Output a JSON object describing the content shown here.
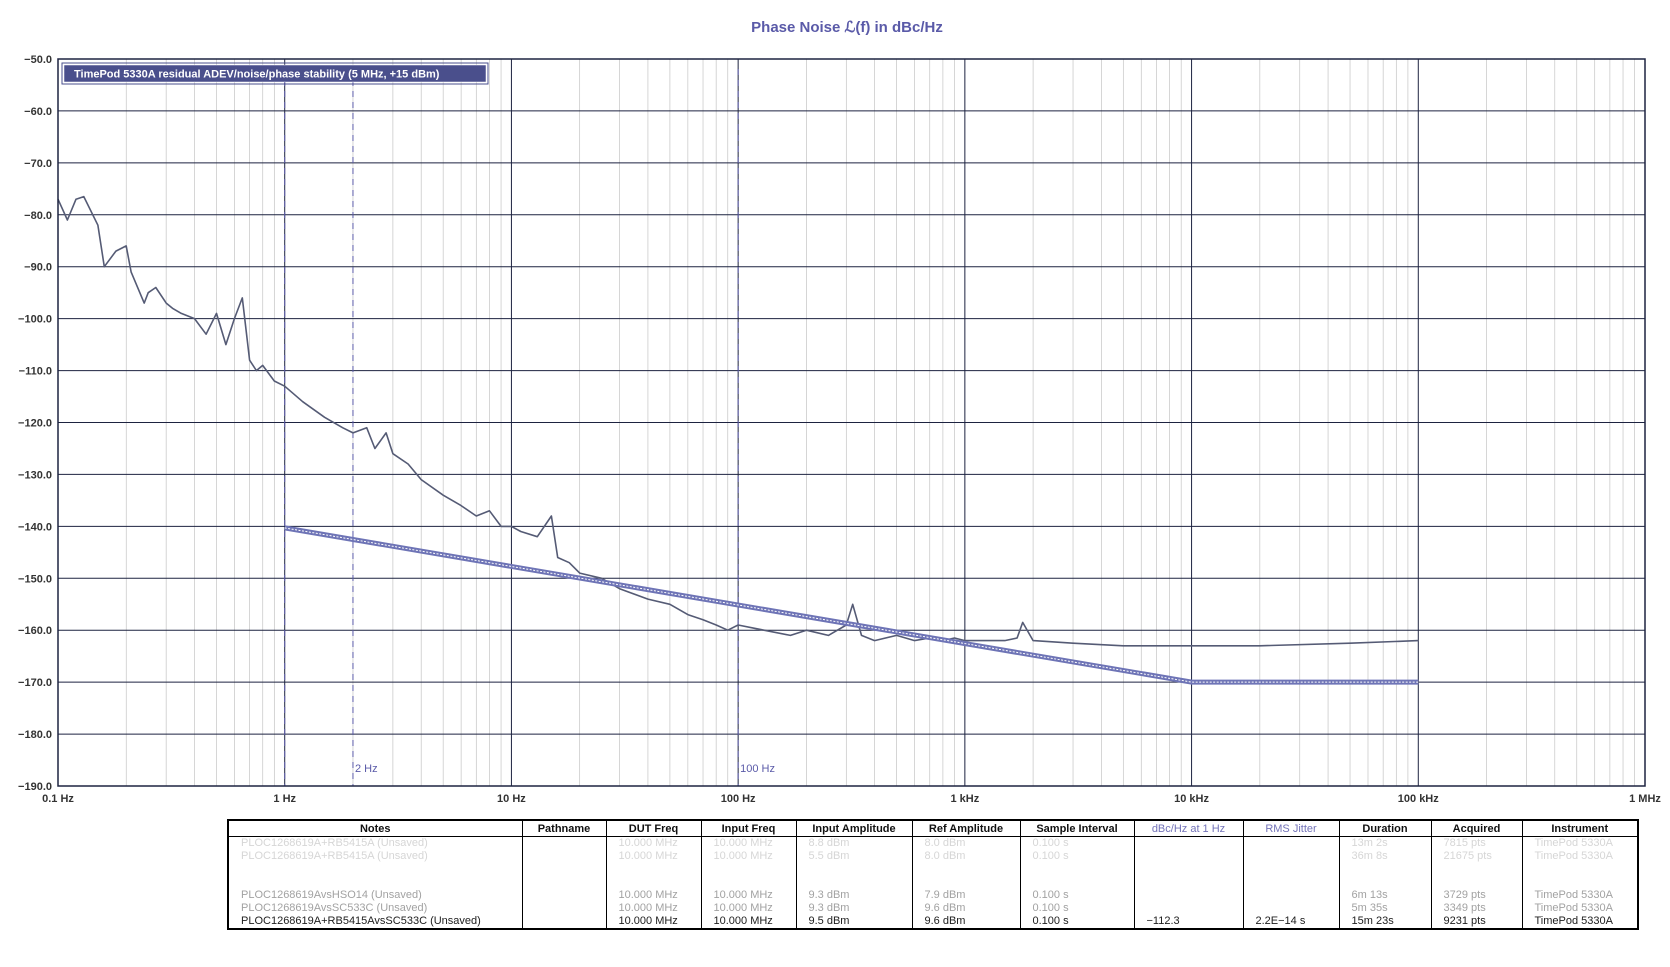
{
  "chart_data": {
    "type": "line",
    "title": "Phase  Noise ℒ(f) in dBc/Hz",
    "xscale": "log",
    "xlim": [
      0.1,
      1000000
    ],
    "ylim": [
      -190,
      -50
    ],
    "grid": true,
    "x_tick_labels": [
      "0.1 Hz",
      "1 Hz",
      "10 Hz",
      "100 Hz",
      "1 kHz",
      "10 kHz",
      "100 kHz",
      "1 MHz"
    ],
    "y_tick_values": [
      -50,
      -60,
      -70,
      -80,
      -90,
      -100,
      -110,
      -120,
      -130,
      -140,
      -150,
      -160,
      -170,
      -180,
      -190
    ],
    "y_tick_labels": [
      "−50.0",
      "−60.0",
      "−70.0",
      "−80.0",
      "−90.0",
      "−100.0",
      "−110.0",
      "−120.0",
      "−130.0",
      "−140.0",
      "−150.0",
      "−160.0",
      "−170.0",
      "−180.0",
      "−190.0"
    ],
    "markers": [
      {
        "x": 1,
        "label": ""
      },
      {
        "x": 2,
        "label": "2 Hz"
      },
      {
        "x": 100,
        "label": "100 Hz"
      }
    ],
    "legend": {
      "text": "TimePod 5330A residual ADEV/noise/phase stability (5 MHz, +15 dBm)",
      "placement": "top-left"
    },
    "colors": {
      "trace": "#555b75",
      "spec": "#6e74b6",
      "marker": "#5a5aa8",
      "grid_major": "#1d2340",
      "grid_minor": "#c4c4c4"
    },
    "series": [
      {
        "x": [
          0.1,
          0.11,
          0.12,
          0.13,
          0.15,
          0.16,
          0.18,
          0.2,
          0.21,
          0.24,
          0.25,
          0.27,
          0.3,
          0.32,
          0.35,
          0.4,
          0.45,
          0.5,
          0.55,
          0.6,
          0.65,
          0.7,
          0.75,
          0.8,
          0.9,
          1.0,
          1.2,
          1.5,
          1.8,
          2.0,
          2.3,
          2.5,
          2.8,
          3.0,
          3.5,
          4.0,
          5.0,
          6.0,
          7.0,
          8.0,
          9.0,
          10,
          11,
          13,
          15,
          16,
          18,
          20,
          25,
          30,
          40,
          50,
          60,
          70,
          80,
          90,
          100,
          130,
          170,
          200,
          250,
          300,
          320,
          350,
          400,
          500,
          600,
          700,
          800,
          900,
          1000,
          1300,
          1500,
          1700,
          1800,
          2000,
          3000,
          5000,
          7000,
          10000,
          20000,
          50000,
          100000
        ],
        "y": [
          -77,
          -81,
          -77,
          -76.5,
          -82,
          -90,
          -87,
          -86,
          -91,
          -97,
          -95,
          -94,
          -97,
          -98,
          -99,
          -100,
          -103,
          -99,
          -105,
          -100,
          -96,
          -108,
          -110,
          -109,
          -112,
          -113,
          -116,
          -119,
          -121,
          -122,
          -121,
          -125,
          -122,
          -126,
          -128,
          -131,
          -134,
          -136,
          -138,
          -137,
          -140,
          -140,
          -141,
          -142,
          -138,
          -146,
          -147,
          -149,
          -150,
          -152,
          -154,
          -155,
          -157,
          -158,
          -159,
          -160,
          -159,
          -160,
          -161,
          -160,
          -161,
          -159,
          -155,
          -161,
          -162,
          -161,
          -162,
          -161.5,
          -162,
          -161.5,
          -162,
          -162,
          -162,
          -161.5,
          -158.5,
          -162,
          -162.5,
          -163,
          -163,
          -163,
          -163,
          -162.5,
          -162
        ]
      },
      {
        "x": [
          1,
          10000,
          100000
        ],
        "y": [
          -140.3,
          -170,
          -170
        ]
      }
    ]
  },
  "table": {
    "columns": [
      "Notes",
      "Pathname",
      "DUT Freq",
      "Input Freq",
      "Input Amplitude",
      "Ref Amplitude",
      "Sample Interval",
      "dBc/Hz at 1 Hz",
      "RMS Jitter",
      "Duration",
      "Acquired",
      "Instrument"
    ],
    "rows": [
      [
        "PLOC1268619A+RB5415A (Unsaved)",
        "",
        "10.000 MHz",
        "10.000 MHz",
        "8.8 dBm",
        "8.0 dBm",
        "0.100 s",
        "",
        "",
        "13m 2s",
        "7815 pts",
        "TimePod 5330A"
      ],
      [
        "PLOC1268619A+RB5415A (Unsaved)",
        "",
        "10.000 MHz",
        "10.000 MHz",
        "5.5 dBm",
        "8.0 dBm",
        "0.100 s",
        "",
        "",
        "36m 8s",
        "21675 pts",
        "TimePod 5330A"
      ],
      [
        "",
        "",
        "",
        "",
        "",
        "",
        "",
        "",
        "",
        "",
        "",
        ""
      ],
      [
        "",
        "",
        "",
        "",
        "",
        "",
        "",
        "",
        "",
        "",
        "",
        ""
      ],
      [
        "PLOC1268619AvsHSO14 (Unsaved)",
        "",
        "10.000 MHz",
        "10.000 MHz",
        "9.3 dBm",
        "7.9 dBm",
        "0.100 s",
        "",
        "",
        "6m 13s",
        "3729 pts",
        "TimePod 5330A"
      ],
      [
        "PLOC1268619AvsSC533C (Unsaved)",
        "",
        "10.000 MHz",
        "10.000 MHz",
        "9.3 dBm",
        "9.6 dBm",
        "0.100 s",
        "",
        "",
        "5m 35s",
        "3349 pts",
        "TimePod 5330A"
      ],
      [
        "PLOC1268619A+RB5415AvsSC533C (Unsaved)",
        "",
        "10.000 MHz",
        "10.000 MHz",
        "9.5 dBm",
        "9.6 dBm",
        "0.100 s",
        "−112.3",
        "2.2E−14 s",
        "15m 23s",
        "9231 pts",
        "TimePod 5330A"
      ]
    ]
  }
}
